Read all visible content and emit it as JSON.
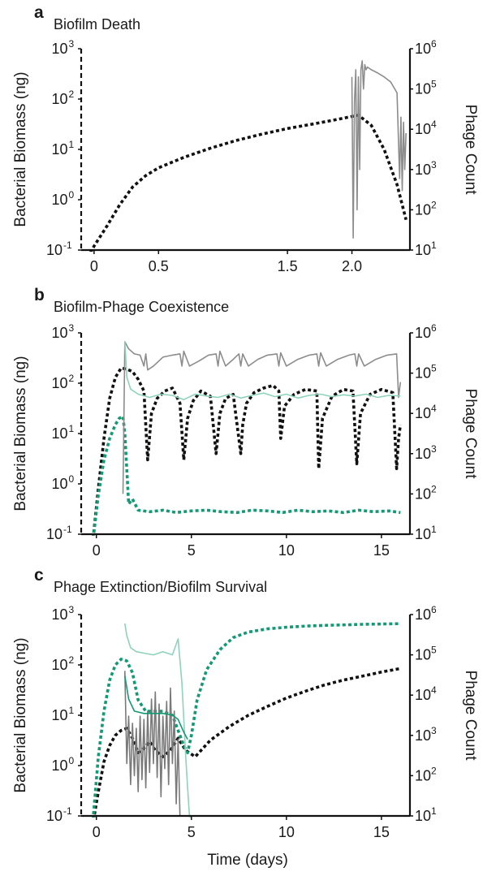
{
  "figure": {
    "xlabel": "Time (days)"
  },
  "chart_data": [
    {
      "type": "line",
      "panel_letter": "a",
      "title": "Biofilm Death",
      "ylabel_left": "Bacterial Biomass (ng)",
      "ylabel_right": "Phage Count",
      "x_ticks": [
        "0",
        "0.5",
        "1.5",
        "2.0"
      ],
      "y_left_ticks": [
        "10",
        "10",
        "10",
        "10",
        "10"
      ],
      "y_left_exp": [
        "-1",
        "0",
        "1",
        "2",
        "3"
      ],
      "y_right_ticks": [
        "10",
        "10",
        "10",
        "10",
        "10",
        "10"
      ],
      "y_right_exp": [
        "1",
        "2",
        "3",
        "4",
        "5",
        "6"
      ],
      "xlim": [
        -0.1,
        2.45
      ],
      "ylim_left": [
        0.1,
        1000
      ],
      "ylim_right": [
        10,
        1000000
      ],
      "yscale": "log",
      "series": [
        {
          "axis": "left",
          "color": "#111111",
          "style": "dashed",
          "x": [
            -0.05,
            0.0,
            0.1,
            0.2,
            0.3,
            0.4,
            0.5,
            0.7,
            0.9,
            1.1,
            1.3,
            1.5,
            1.7,
            1.9,
            2.05,
            2.15,
            2.25,
            2.35,
            2.42
          ],
          "y": [
            0.07,
            0.12,
            0.3,
            0.8,
            1.8,
            3.0,
            4.3,
            7.0,
            10.5,
            15,
            20,
            26,
            32,
            40,
            48,
            30,
            10,
            2.0,
            0.4
          ]
        },
        {
          "axis": "right",
          "color": "#8c8c8c",
          "style": "solid",
          "x": [
            2.0,
            2.01,
            2.02,
            2.03,
            2.04,
            2.05,
            2.06,
            2.07,
            2.08,
            2.09,
            2.1,
            2.11,
            2.12,
            2.15,
            2.2,
            2.25,
            2.3,
            2.35,
            2.37,
            2.38,
            2.39,
            2.4,
            2.41,
            2.42
          ],
          "y": [
            200000,
            20,
            50000,
            300000,
            100,
            200000,
            1000,
            300000,
            500000,
            100000,
            400000,
            300000,
            350000,
            300000,
            250000,
            200000,
            150000,
            80000,
            600,
            20000,
            300,
            15000,
            1000,
            8000
          ]
        }
      ]
    },
    {
      "type": "line",
      "panel_letter": "b",
      "title": "Biofilm-Phage Coexistence",
      "ylabel_left": "Bacterial Biomass (ng)",
      "ylabel_right": "Phage Count",
      "x_ticks": [
        "0",
        "5",
        "10",
        "15"
      ],
      "y_left_ticks": [
        "10",
        "10",
        "10",
        "10",
        "10"
      ],
      "y_left_exp": [
        "-1",
        "0",
        "1",
        "2",
        "3"
      ],
      "y_right_ticks": [
        "10",
        "10",
        "10",
        "10",
        "10",
        "10"
      ],
      "y_right_exp": [
        "1",
        "2",
        "3",
        "4",
        "5",
        "6"
      ],
      "xlim": [
        -0.8,
        16.5
      ],
      "ylim_left": [
        0.1,
        1000
      ],
      "ylim_right": [
        10,
        1000000
      ],
      "yscale": "log",
      "series": [
        {
          "axis": "left",
          "color": "#111111",
          "style": "dashed",
          "x": [
            -0.2,
            0.1,
            0.4,
            0.7,
            1.0,
            1.3,
            1.6,
            1.9,
            2.2,
            2.5,
            2.7,
            2.9,
            3.2,
            3.6,
            4.0,
            4.4,
            4.6,
            4.8,
            5.1,
            5.5,
            6.0,
            6.3,
            6.5,
            6.8,
            7.2,
            7.6,
            7.7,
            7.9,
            8.3,
            8.8,
            9.3,
            9.6,
            9.7,
            9.9,
            10.4,
            11.0,
            11.6,
            11.7,
            11.9,
            12.4,
            13.0,
            13.5,
            13.7,
            13.9,
            14.4,
            15.0,
            15.6,
            15.8,
            15.9,
            16.0
          ],
          "y": [
            0.05,
            0.8,
            8,
            50,
            130,
            200,
            190,
            170,
            120,
            70,
            3,
            25,
            50,
            70,
            80,
            40,
            3,
            20,
            45,
            70,
            55,
            4,
            25,
            50,
            60,
            4,
            15,
            40,
            65,
            80,
            90,
            70,
            8,
            35,
            60,
            75,
            70,
            2,
            20,
            55,
            75,
            70,
            2.5,
            25,
            60,
            75,
            65,
            2,
            8,
            15
          ]
        },
        {
          "axis": "left",
          "color": "#139a74",
          "style": "dashed",
          "x": [
            -0.2,
            0.1,
            0.4,
            0.7,
            1.0,
            1.2,
            1.4,
            1.5,
            1.7,
            1.9,
            2.2,
            2.8,
            3.5,
            4.2,
            5.0,
            5.8,
            6.6,
            7.4,
            8.2,
            9.0,
            9.8,
            10.6,
            11.4,
            12.2,
            13.0,
            13.8,
            14.6,
            15.4,
            16.0
          ],
          "y": [
            0.05,
            0.6,
            3,
            8,
            15,
            20,
            22,
            10,
            0.4,
            0.5,
            0.3,
            0.28,
            0.3,
            0.27,
            0.29,
            0.3,
            0.28,
            0.27,
            0.3,
            0.29,
            0.27,
            0.3,
            0.28,
            0.29,
            0.27,
            0.3,
            0.28,
            0.29,
            0.27
          ]
        },
        {
          "axis": "right",
          "color": "#8c8c8c",
          "style": "solid",
          "x": [
            1.4,
            1.5,
            1.7,
            2.0,
            2.3,
            2.5,
            2.6,
            2.7,
            3.0,
            3.5,
            4.0,
            4.4,
            4.5,
            4.6,
            4.9,
            5.4,
            5.9,
            6.3,
            6.4,
            6.5,
            6.8,
            7.2,
            7.5,
            7.6,
            7.7,
            8.0,
            8.5,
            9.0,
            9.5,
            9.6,
            9.7,
            10.0,
            10.6,
            11.2,
            11.6,
            11.7,
            11.8,
            12.1,
            12.7,
            13.3,
            13.6,
            13.7,
            13.8,
            14.1,
            14.7,
            15.3,
            15.8,
            15.9,
            16.0
          ],
          "y": [
            100,
            600000,
            400000,
            300000,
            280000,
            150000,
            300000,
            120000,
            150000,
            250000,
            280000,
            300000,
            150000,
            350000,
            150000,
            200000,
            280000,
            300000,
            150000,
            350000,
            150000,
            220000,
            300000,
            150000,
            300000,
            150000,
            220000,
            280000,
            300000,
            150000,
            320000,
            150000,
            220000,
            280000,
            300000,
            150000,
            320000,
            150000,
            220000,
            280000,
            300000,
            150000,
            300000,
            150000,
            220000,
            280000,
            300000,
            25000,
            60000
          ]
        },
        {
          "axis": "right",
          "color": "#8ed2bc",
          "style": "solid",
          "x": [
            1.5,
            1.6,
            1.8,
            2.2,
            2.8,
            3.4,
            4.0,
            4.6,
            5.2,
            5.8,
            6.4,
            7.0,
            7.6,
            8.2,
            8.8,
            9.4,
            10.0,
            10.6,
            11.2,
            11.8,
            12.4,
            13.0,
            13.6,
            14.2,
            14.8,
            15.4,
            16.0
          ],
          "y": [
            600000,
            80000,
            40000,
            30000,
            25000,
            30000,
            28000,
            22000,
            30000,
            27000,
            25000,
            30000,
            24000,
            28000,
            32000,
            26000,
            30000,
            24000,
            28000,
            30000,
            26000,
            29000,
            27000,
            30000,
            25000,
            28000,
            27000
          ]
        }
      ]
    },
    {
      "type": "line",
      "panel_letter": "c",
      "title": "Phage Extinction/Biofilm Survival",
      "ylabel_left": "Bacterial Biomass (ng)",
      "ylabel_right": "Phage Count",
      "x_ticks": [
        "0",
        "5",
        "10",
        "15"
      ],
      "y_left_ticks": [
        "10",
        "10",
        "10",
        "10",
        "10"
      ],
      "y_left_exp": [
        "-1",
        "0",
        "1",
        "2",
        "3"
      ],
      "y_right_ticks": [
        "10",
        "10",
        "10",
        "10",
        "10",
        "10"
      ],
      "y_right_exp": [
        "1",
        "2",
        "3",
        "4",
        "5",
        "6"
      ],
      "xlim": [
        -0.8,
        16.5
      ],
      "ylim_left": [
        0.1,
        1000
      ],
      "ylim_right": [
        10,
        1000000
      ],
      "yscale": "log",
      "series": [
        {
          "axis": "left",
          "color": "#111111",
          "style": "dashed",
          "x": [
            -0.2,
            0.1,
            0.4,
            0.7,
            1.0,
            1.3,
            1.6,
            1.9,
            2.2,
            2.5,
            2.8,
            3.1,
            3.5,
            3.9,
            4.3,
            4.7,
            5.2,
            6.0,
            7.0,
            8.0,
            9.0,
            10.0,
            11.0,
            12.0,
            13.0,
            14.0,
            15.0,
            16.0
          ],
          "y": [
            0.05,
            0.3,
            1.2,
            2.5,
            4.0,
            5.0,
            5.5,
            3.5,
            1.8,
            2.2,
            3.0,
            2.0,
            1.5,
            2.0,
            3.5,
            2.0,
            1.5,
            3.2,
            6.0,
            10,
            15,
            22,
            30,
            40,
            50,
            60,
            72,
            85
          ]
        },
        {
          "axis": "left",
          "color": "#139a74",
          "style": "dashed",
          "x": [
            -0.2,
            0.1,
            0.4,
            0.7,
            1.0,
            1.3,
            1.6,
            1.9,
            2.2,
            2.6,
            3.0,
            3.5,
            4.0,
            4.3,
            4.6,
            4.8,
            5.0,
            5.3,
            5.8,
            6.5,
            7.2,
            8.0,
            9.0,
            10.0,
            11.0,
            12.0,
            13.0,
            14.0,
            15.0,
            16.0
          ],
          "y": [
            0.05,
            1.5,
            12,
            50,
            100,
            130,
            120,
            70,
            20,
            12,
            12,
            12,
            10,
            5,
            2.5,
            1.8,
            4,
            20,
            80,
            200,
            350,
            450,
            520,
            560,
            590,
            610,
            625,
            640,
            650,
            660
          ]
        },
        {
          "axis": "right",
          "color": "#7a7a7a",
          "style": "solid",
          "x": [
            1.5,
            1.6,
            1.7,
            1.8,
            1.9,
            2.0,
            2.1,
            2.2,
            2.3,
            2.4,
            2.5,
            2.6,
            2.7,
            2.8,
            2.9,
            3.0,
            3.1,
            3.2,
            3.3,
            3.4,
            3.5,
            3.6,
            3.7,
            3.8,
            3.9,
            4.0,
            4.1,
            4.2,
            4.3,
            4.4
          ],
          "y": [
            40000,
            200,
            3000,
            60,
            2000,
            100,
            1500,
            40,
            3000,
            80,
            2500,
            50,
            4000,
            120,
            8000,
            200,
            12000,
            90,
            6000,
            30,
            3000,
            150,
            7000,
            60,
            15000,
            200,
            4000,
            20,
            800,
            10
          ]
        },
        {
          "axis": "right",
          "color": "#8ed2bc",
          "style": "solid",
          "x": [
            1.5,
            1.6,
            1.8,
            2.1,
            2.5,
            3.0,
            3.5,
            4.0,
            4.3,
            4.5,
            4.7,
            4.8,
            4.9,
            5.0
          ],
          "y": [
            600000,
            300000,
            150000,
            120000,
            110000,
            100000,
            120000,
            100000,
            250000,
            20000,
            300,
            50,
            10,
            8
          ]
        },
        {
          "axis": "right",
          "color": "#139a74",
          "style": "solid",
          "x": [
            1.5,
            1.7,
            2.0,
            2.5,
            3.0,
            3.5,
            4.0,
            4.3,
            4.6,
            4.8
          ],
          "y": [
            30000,
            8000,
            4000,
            3500,
            3500,
            3500,
            3200,
            2500,
            1200,
            800
          ]
        }
      ]
    }
  ]
}
